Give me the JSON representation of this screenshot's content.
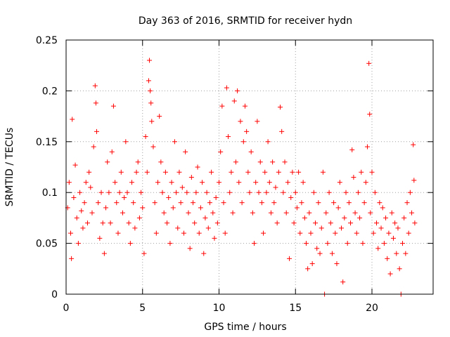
{
  "chart_data": {
    "type": "scatter",
    "title": "Day 363 of 2016, SRMTID for receiver hydn",
    "xlabel": "GPS time / hours",
    "ylabel": "SRMTID / TECUs",
    "xlim": [
      0,
      24
    ],
    "ylim": [
      0,
      0.25
    ],
    "xticks": [
      0,
      5,
      10,
      15,
      20
    ],
    "xtick_labels": [
      "0",
      "5",
      "10",
      "15",
      "20"
    ],
    "yticks": [
      0,
      0.05,
      0.1,
      0.15,
      0.2,
      0.25
    ],
    "ytick_labels": [
      "0",
      "0.05",
      "0.1",
      "0.15",
      "0.2",
      "0.25"
    ],
    "grid": true,
    "marker": "+",
    "series_color": "#ff0000",
    "points_note": "dense plus-marker cloud; representative points",
    "series": [
      {
        "name": "SRMTID",
        "points": [
          [
            0.1,
            0.085
          ],
          [
            0.2,
            0.11
          ],
          [
            0.3,
            0.06
          ],
          [
            0.35,
            0.035
          ],
          [
            0.4,
            0.172
          ],
          [
            0.5,
            0.095
          ],
          [
            0.6,
            0.127
          ],
          [
            0.7,
            0.075
          ],
          [
            0.8,
            0.05
          ],
          [
            0.9,
            0.1
          ],
          [
            1.0,
            0.082
          ],
          [
            1.1,
            0.065
          ],
          [
            1.2,
            0.09
          ],
          [
            1.3,
            0.11
          ],
          [
            1.4,
            0.07
          ],
          [
            1.5,
            0.12
          ],
          [
            1.6,
            0.105
          ],
          [
            1.7,
            0.08
          ],
          [
            1.8,
            0.145
          ],
          [
            1.9,
            0.205
          ],
          [
            1.95,
            0.188
          ],
          [
            2.0,
            0.16
          ],
          [
            2.1,
            0.09
          ],
          [
            2.2,
            0.055
          ],
          [
            2.3,
            0.1
          ],
          [
            2.4,
            0.07
          ],
          [
            2.5,
            0.04
          ],
          [
            2.6,
            0.085
          ],
          [
            2.7,
            0.13
          ],
          [
            2.8,
            0.1
          ],
          [
            2.9,
            0.07
          ],
          [
            3.0,
            0.14
          ],
          [
            3.1,
            0.185
          ],
          [
            3.2,
            0.11
          ],
          [
            3.3,
            0.09
          ],
          [
            3.4,
            0.06
          ],
          [
            3.5,
            0.1
          ],
          [
            3.6,
            0.12
          ],
          [
            3.7,
            0.08
          ],
          [
            3.8,
            0.095
          ],
          [
            3.9,
            0.15
          ],
          [
            4.0,
            0.1
          ],
          [
            4.1,
            0.07
          ],
          [
            4.2,
            0.05
          ],
          [
            4.3,
            0.11
          ],
          [
            4.4,
            0.09
          ],
          [
            4.5,
            0.065
          ],
          [
            4.6,
            0.12
          ],
          [
            4.7,
            0.13
          ],
          [
            4.8,
            0.075
          ],
          [
            4.9,
            0.1
          ],
          [
            5.0,
            0.085
          ],
          [
            5.1,
            0.04
          ],
          [
            5.2,
            0.155
          ],
          [
            5.3,
            0.12
          ],
          [
            5.4,
            0.21
          ],
          [
            5.45,
            0.23
          ],
          [
            5.5,
            0.2
          ],
          [
            5.55,
            0.188
          ],
          [
            5.6,
            0.17
          ],
          [
            5.7,
            0.145
          ],
          [
            5.8,
            0.09
          ],
          [
            5.9,
            0.06
          ],
          [
            6.0,
            0.11
          ],
          [
            6.1,
            0.175
          ],
          [
            6.2,
            0.13
          ],
          [
            6.3,
            0.1
          ],
          [
            6.4,
            0.08
          ],
          [
            6.5,
            0.12
          ],
          [
            6.6,
            0.07
          ],
          [
            6.7,
            0.095
          ],
          [
            6.8,
            0.05
          ],
          [
            6.9,
            0.11
          ],
          [
            7.0,
            0.085
          ],
          [
            7.1,
            0.15
          ],
          [
            7.2,
            0.1
          ],
          [
            7.3,
            0.065
          ],
          [
            7.4,
            0.12
          ],
          [
            7.5,
            0.09
          ],
          [
            7.6,
            0.105
          ],
          [
            7.7,
            0.06
          ],
          [
            7.8,
            0.14
          ],
          [
            7.9,
            0.1
          ],
          [
            8.0,
            0.08
          ],
          [
            8.1,
            0.045
          ],
          [
            8.2,
            0.115
          ],
          [
            8.3,
            0.09
          ],
          [
            8.4,
            0.07
          ],
          [
            8.5,
            0.1
          ],
          [
            8.6,
            0.125
          ],
          [
            8.7,
            0.06
          ],
          [
            8.8,
            0.085
          ],
          [
            8.9,
            0.11
          ],
          [
            9.0,
            0.04
          ],
          [
            9.1,
            0.075
          ],
          [
            9.2,
            0.1
          ],
          [
            9.3,
            0.065
          ],
          [
            9.4,
            0.09
          ],
          [
            9.5,
            0.12
          ],
          [
            9.6,
            0.08
          ],
          [
            9.7,
            0.055
          ],
          [
            9.8,
            0.095
          ],
          [
            9.9,
            0.07
          ],
          [
            10.0,
            0.11
          ],
          [
            10.1,
            0.14
          ],
          [
            10.2,
            0.185
          ],
          [
            10.3,
            0.09
          ],
          [
            10.4,
            0.06
          ],
          [
            10.5,
            0.203
          ],
          [
            10.6,
            0.155
          ],
          [
            10.7,
            0.1
          ],
          [
            10.8,
            0.12
          ],
          [
            10.9,
            0.08
          ],
          [
            11.0,
            0.19
          ],
          [
            11.1,
            0.13
          ],
          [
            11.2,
            0.2
          ],
          [
            11.3,
            0.11
          ],
          [
            11.4,
            0.17
          ],
          [
            11.5,
            0.09
          ],
          [
            11.6,
            0.15
          ],
          [
            11.7,
            0.185
          ],
          [
            11.8,
            0.16
          ],
          [
            11.9,
            0.12
          ],
          [
            12.0,
            0.1
          ],
          [
            12.1,
            0.14
          ],
          [
            12.2,
            0.08
          ],
          [
            12.3,
            0.05
          ],
          [
            12.4,
            0.11
          ],
          [
            12.5,
            0.17
          ],
          [
            12.6,
            0.1
          ],
          [
            12.7,
            0.13
          ],
          [
            12.8,
            0.09
          ],
          [
            12.9,
            0.06
          ],
          [
            13.0,
            0.12
          ],
          [
            13.1,
            0.1
          ],
          [
            13.2,
            0.15
          ],
          [
            13.3,
            0.11
          ],
          [
            13.4,
            0.08
          ],
          [
            13.5,
            0.13
          ],
          [
            13.6,
            0.09
          ],
          [
            13.7,
            0.105
          ],
          [
            13.8,
            0.07
          ],
          [
            13.9,
            0.12
          ],
          [
            14.0,
            0.184
          ],
          [
            14.1,
            0.16
          ],
          [
            14.2,
            0.1
          ],
          [
            14.3,
            0.13
          ],
          [
            14.4,
            0.08
          ],
          [
            14.5,
            0.11
          ],
          [
            14.6,
            0.035
          ],
          [
            14.7,
            0.095
          ],
          [
            14.8,
            0.12
          ],
          [
            14.9,
            0.07
          ],
          [
            15.0,
            0.1
          ],
          [
            15.1,
            0.085
          ],
          [
            15.2,
            0.12
          ],
          [
            15.3,
            0.06
          ],
          [
            15.4,
            0.09
          ],
          [
            15.5,
            0.11
          ],
          [
            15.6,
            0.075
          ],
          [
            15.7,
            0.05
          ],
          [
            15.8,
            0.025
          ],
          [
            15.9,
            0.08
          ],
          [
            16.0,
            0.06
          ],
          [
            16.1,
            0.03
          ],
          [
            16.2,
            0.1
          ],
          [
            16.3,
            0.07
          ],
          [
            16.4,
            0.045
          ],
          [
            16.5,
            0.09
          ],
          [
            16.6,
            0.04
          ],
          [
            16.7,
            0.065
          ],
          [
            16.8,
            0.12
          ],
          [
            16.9,
            0.0
          ],
          [
            17.0,
            0.08
          ],
          [
            17.1,
            0.05
          ],
          [
            17.2,
            0.1
          ],
          [
            17.3,
            0.07
          ],
          [
            17.4,
            0.04
          ],
          [
            17.5,
            0.09
          ],
          [
            17.6,
            0.06
          ],
          [
            17.7,
            0.03
          ],
          [
            17.8,
            0.085
          ],
          [
            17.9,
            0.11
          ],
          [
            18.0,
            0.065
          ],
          [
            18.1,
            0.012
          ],
          [
            18.2,
            0.075
          ],
          [
            18.3,
            0.1
          ],
          [
            18.4,
            0.05
          ],
          [
            18.5,
            0.09
          ],
          [
            18.6,
            0.07
          ],
          [
            18.7,
            0.142
          ],
          [
            18.8,
            0.115
          ],
          [
            18.9,
            0.08
          ],
          [
            19.0,
            0.06
          ],
          [
            19.1,
            0.1
          ],
          [
            19.2,
            0.075
          ],
          [
            19.3,
            0.12
          ],
          [
            19.4,
            0.05
          ],
          [
            19.5,
            0.09
          ],
          [
            19.6,
            0.11
          ],
          [
            19.7,
            0.145
          ],
          [
            19.8,
            0.227
          ],
          [
            19.85,
            0.177
          ],
          [
            19.9,
            0.08
          ],
          [
            20.0,
            0.12
          ],
          [
            20.1,
            0.06
          ],
          [
            20.2,
            0.1
          ],
          [
            20.3,
            0.07
          ],
          [
            20.4,
            0.045
          ],
          [
            20.5,
            0.09
          ],
          [
            20.6,
            0.065
          ],
          [
            20.7,
            0.085
          ],
          [
            20.8,
            0.05
          ],
          [
            20.9,
            0.075
          ],
          [
            21.0,
            0.035
          ],
          [
            21.1,
            0.06
          ],
          [
            21.2,
            0.02
          ],
          [
            21.3,
            0.08
          ],
          [
            21.4,
            0.055
          ],
          [
            21.5,
            0.07
          ],
          [
            21.6,
            0.04
          ],
          [
            21.7,
            0.065
          ],
          [
            21.8,
            0.025
          ],
          [
            21.9,
            0.0
          ],
          [
            22.0,
            0.05
          ],
          [
            22.1,
            0.075
          ],
          [
            22.2,
            0.04
          ],
          [
            22.3,
            0.09
          ],
          [
            22.4,
            0.06
          ],
          [
            22.5,
            0.1
          ],
          [
            22.6,
            0.08
          ],
          [
            22.7,
            0.147
          ],
          [
            22.75,
            0.112
          ],
          [
            22.8,
            0.07
          ]
        ]
      }
    ]
  }
}
